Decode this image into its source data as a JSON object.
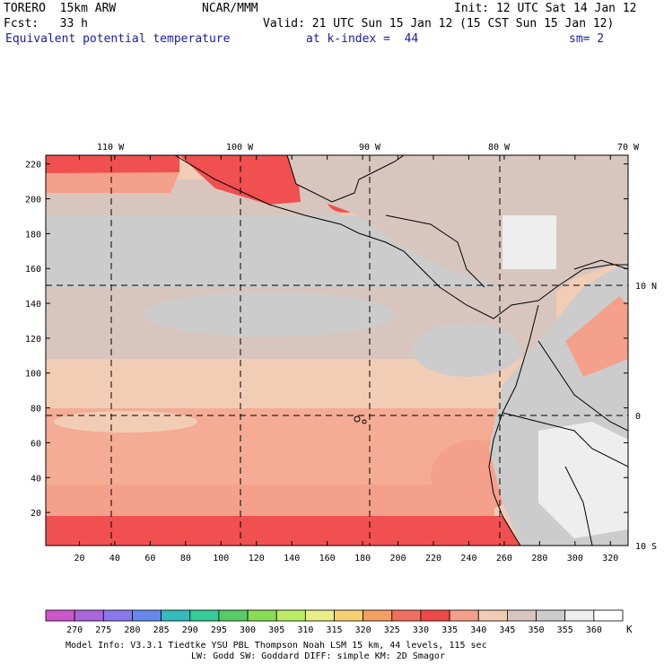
{
  "header": {
    "line1_left": "TORERO  15km ARW",
    "line1_mid": "NCAR/MMM",
    "line1_right": "Init: 12 UTC Sat 14 Jan 12",
    "line2_left": "Fcst:   33 h",
    "line2_right": "Valid: 21 UTC Sun 15 Jan 12 (15 CST Sun 15 Jan 12)",
    "line3_field": "Equivalent potential temperature",
    "line3_level": "at k-index =  44",
    "line3_sm": "sm= 2"
  },
  "map": {
    "lon_labels": [
      "110 W",
      "100 W",
      "90 W",
      "80 W",
      "70 W"
    ],
    "lat_labels": [
      "10 N",
      "0",
      "10 S"
    ],
    "y_ticks": [
      "220",
      "200",
      "180",
      "160",
      "140",
      "120",
      "100",
      "80",
      "60",
      "40",
      "20"
    ],
    "x_ticks": [
      "20",
      "40",
      "60",
      "80",
      "100",
      "120",
      "140",
      "160",
      "180",
      "200",
      "220",
      "240",
      "260",
      "280",
      "300",
      "320"
    ],
    "grid_x": [
      1,
      330
    ],
    "grid_y": [
      1,
      225
    ]
  },
  "colorbar": {
    "labels": [
      "270",
      "275",
      "280",
      "285",
      "290",
      "295",
      "300",
      "305",
      "310",
      "315",
      "320",
      "325",
      "330",
      "335",
      "340",
      "345",
      "350",
      "355",
      "360"
    ],
    "unit": "K",
    "colors": [
      "#cc55cc",
      "#aa66dd",
      "#8877ee",
      "#6688ee",
      "#33bbbb",
      "#33cc99",
      "#55cc66",
      "#88dd55",
      "#bbee66",
      "#e8ee88",
      "#f5d070",
      "#f5a060",
      "#f07060",
      "#f04848",
      "#f5a08a",
      "#f2cdb5",
      "#d8c6be",
      "#cccccc",
      "#eeeeee",
      "#ffffff"
    ]
  },
  "footer": {
    "line1": "Model Info: V3.3.1    Tiedtke YSU PBL  Thompson    Noah LSM  15 km,   44 levels,  115 sec",
    "line2": "LW: Godd SW: Goddard DIFF: simple KM: 2D Smagor"
  }
}
